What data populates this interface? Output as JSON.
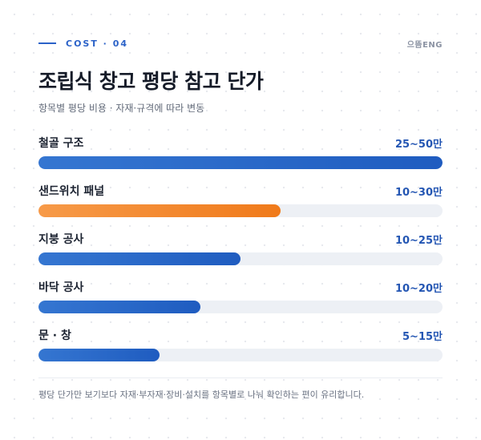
{
  "header": {
    "eyebrow": "COST · 04",
    "brand": "으뜸ENG",
    "title": "조립식 창고 평당 참고 단가",
    "subtitle": "항목별 평당 비용 · 자재·규격에 따라 변동"
  },
  "colors": {
    "primary": "#2b62c8",
    "bar_blue": "#2463c4",
    "bar_orange": "#f5841f",
    "track": "#edf0f5"
  },
  "rows": [
    {
      "label": "철골 구조",
      "value": "25~50만",
      "fill_fraction": 1.0,
      "style": "primary"
    },
    {
      "label": "샌드위치 패널",
      "value": "10~30만",
      "fill_fraction": 0.6,
      "style": "accent"
    },
    {
      "label": "지붕 공사",
      "value": "10~25만",
      "fill_fraction": 0.5,
      "style": "primary"
    },
    {
      "label": "바닥 공사",
      "value": "10~20만",
      "fill_fraction": 0.4,
      "style": "primary"
    },
    {
      "label": "문 · 창",
      "value": "5~15만",
      "fill_fraction": 0.3,
      "style": "primary"
    }
  ],
  "footnote": "평당 단가만 보기보다 자재·부자재·장비·설치를 항목별로 나눠 확인하는 편이 유리합니다."
}
